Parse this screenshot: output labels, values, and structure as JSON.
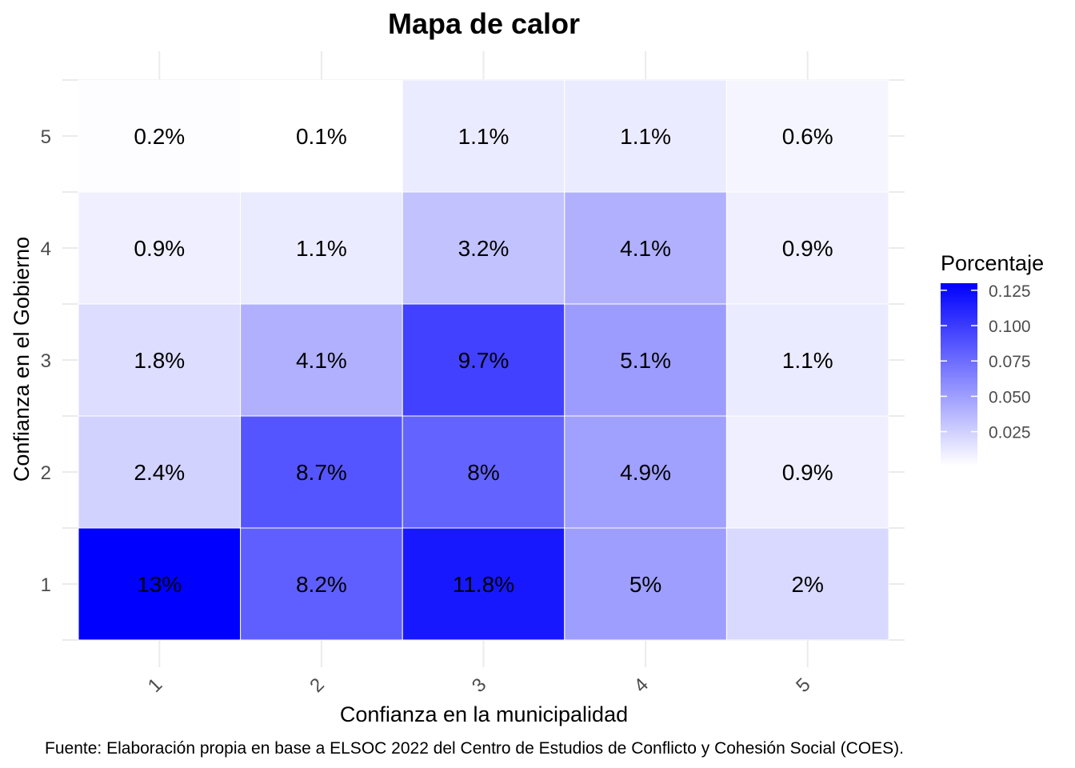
{
  "chart_data": {
    "type": "heatmap",
    "title": "Mapa de calor",
    "xlabel": "Confianza en la municipalidad",
    "ylabel": "Confianza en el Gobierno",
    "x_categories": [
      "1",
      "2",
      "3",
      "4",
      "5"
    ],
    "y_categories": [
      "1",
      "2",
      "3",
      "4",
      "5"
    ],
    "values": [
      [
        0.13,
        0.082,
        0.118,
        0.05,
        0.02
      ],
      [
        0.024,
        0.087,
        0.08,
        0.049,
        0.009
      ],
      [
        0.018,
        0.041,
        0.097,
        0.051,
        0.011
      ],
      [
        0.009,
        0.011,
        0.032,
        0.041,
        0.009
      ],
      [
        0.002,
        0.001,
        0.011,
        0.011,
        0.006
      ]
    ],
    "cell_labels": [
      [
        "13%",
        "8.2%",
        "11.8%",
        "5%",
        "2%"
      ],
      [
        "2.4%",
        "8.7%",
        "8%",
        "4.9%",
        "0.9%"
      ],
      [
        "1.8%",
        "4.1%",
        "9.7%",
        "5.1%",
        "1.1%"
      ],
      [
        "0.9%",
        "1.1%",
        "3.2%",
        "4.1%",
        "0.9%"
      ],
      [
        "0.2%",
        "0.1%",
        "1.1%",
        "1.1%",
        "0.6%"
      ]
    ],
    "legend": {
      "title": "Porcentaje",
      "ticks": [
        "0.025",
        "0.050",
        "0.075",
        "0.100",
        "0.125"
      ],
      "tick_values": [
        0.025,
        0.05,
        0.075,
        0.1,
        0.125
      ],
      "range": [
        0.001,
        0.13
      ],
      "low_color": "#ffffff",
      "high_color": "#0000ff",
      "position": "right"
    },
    "grid": true,
    "caption": "Fuente: Elaboración propia en base a ELSOC 2022 del Centro de Estudios de Conflicto y Cohesión Social (COES)."
  }
}
